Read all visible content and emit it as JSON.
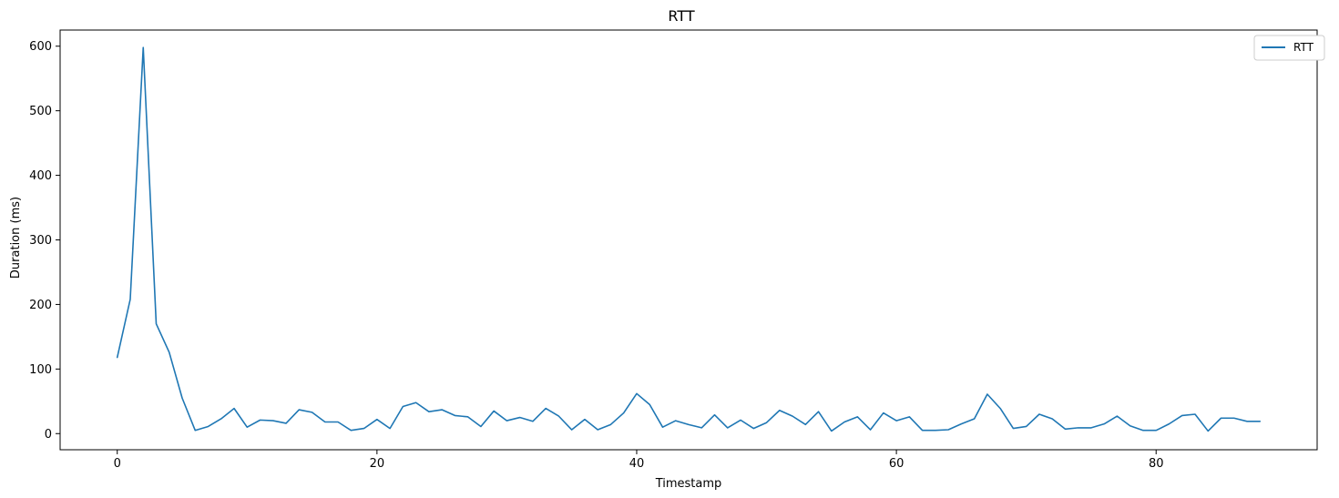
{
  "chart_data": {
    "type": "line",
    "title": "RTT",
    "xlabel": "Timestamp",
    "ylabel": "Duration (ms)",
    "xlim": [
      -4.4,
      92.4
    ],
    "ylim": [
      -25,
      625
    ],
    "xticks": [
      0,
      20,
      40,
      60,
      80
    ],
    "yticks": [
      0,
      100,
      200,
      300,
      400,
      500,
      600
    ],
    "grid": false,
    "legend_position": "top-right",
    "series": [
      {
        "name": "RTT",
        "color": "#1f77b4",
        "x": [
          0,
          1,
          2,
          3,
          4,
          5,
          6,
          7,
          8,
          9,
          10,
          11,
          12,
          13,
          14,
          15,
          16,
          17,
          18,
          19,
          20,
          21,
          22,
          23,
          24,
          25,
          26,
          27,
          28,
          29,
          30,
          31,
          32,
          33,
          34,
          35,
          36,
          37,
          38,
          39,
          40,
          41,
          42,
          43,
          44,
          45,
          46,
          47,
          48,
          49,
          50,
          51,
          52,
          53,
          54,
          55,
          56,
          57,
          58,
          59,
          60,
          61,
          62,
          63,
          64,
          65,
          66,
          67,
          68,
          69,
          70,
          71,
          72,
          73,
          74,
          75,
          76,
          77,
          78,
          79,
          80,
          81,
          82,
          83,
          84,
          85,
          86,
          87,
          88
        ],
        "y": [
          118,
          208,
          598,
          170,
          126,
          55,
          5,
          11,
          23,
          39,
          10,
          21,
          20,
          16,
          37,
          33,
          18,
          18,
          5,
          8,
          22,
          8,
          42,
          48,
          34,
          37,
          28,
          26,
          11,
          35,
          20,
          25,
          19,
          39,
          27,
          6,
          22,
          6,
          14,
          32,
          62,
          45,
          10,
          20,
          14,
          9,
          29,
          9,
          21,
          8,
          17,
          36,
          27,
          14,
          34,
          4,
          18,
          26,
          6,
          32,
          20,
          26,
          5,
          5,
          6,
          15,
          23,
          61,
          39,
          8,
          11,
          30,
          23,
          7,
          9,
          9,
          15,
          27,
          12,
          5,
          5,
          15,
          28,
          30,
          4,
          24,
          24,
          19,
          19
        ]
      }
    ]
  }
}
